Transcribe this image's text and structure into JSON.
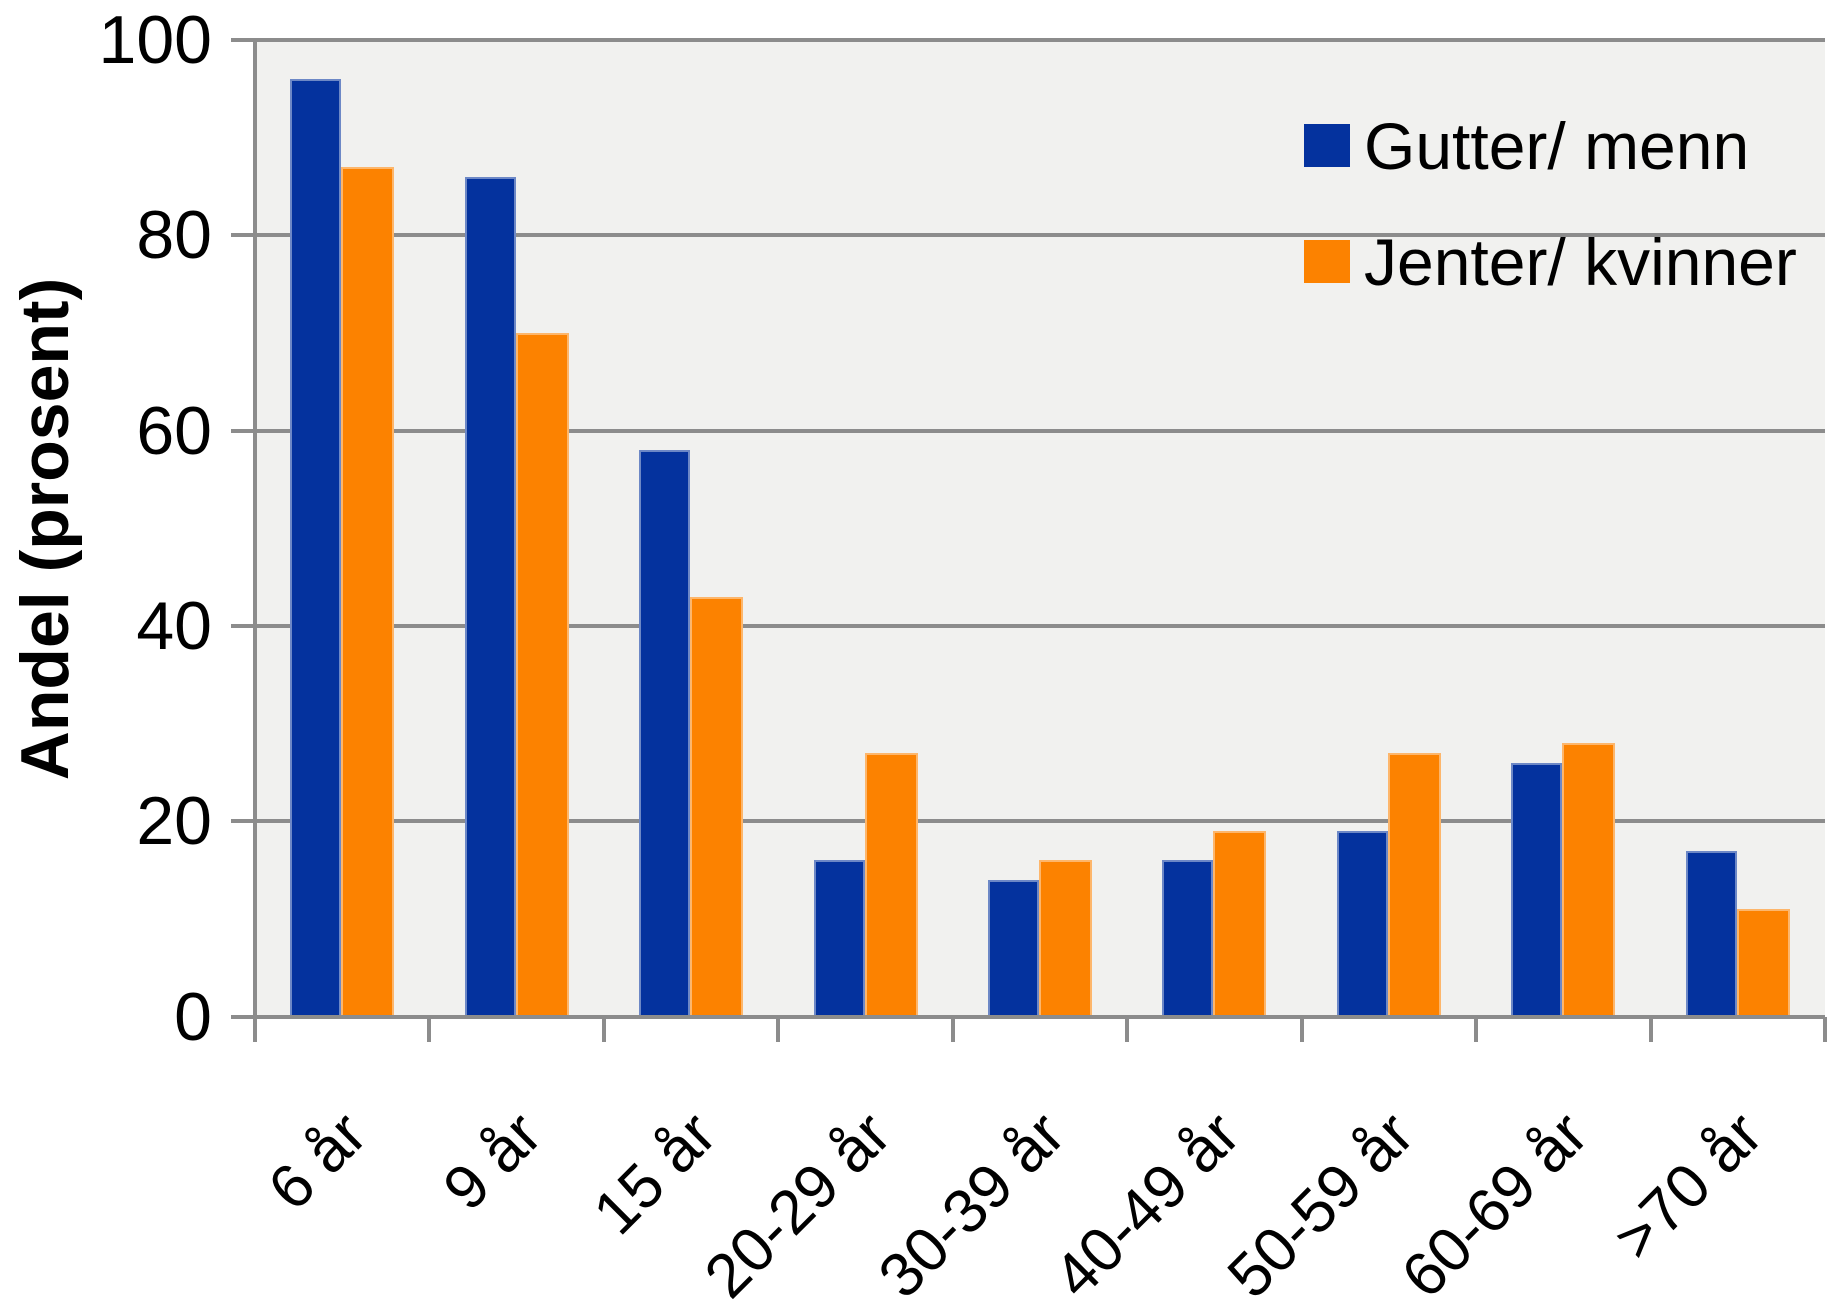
{
  "chart_data": {
    "type": "bar",
    "title": "",
    "ylabel": "Andel (prosent)",
    "xlabel": "",
    "categories": [
      "6 år",
      "9 år",
      "15 år",
      "20-29 år",
      "30-39 år",
      "40-49 år",
      "50-59 år",
      "60-69 år",
      ">70 år"
    ],
    "series": [
      {
        "name": "Gutter/ menn",
        "color": "#04329e",
        "values": [
          96,
          86,
          58,
          16,
          14,
          16,
          19,
          26,
          17
        ]
      },
      {
        "name": "Jenter/ kvinner",
        "color": "#fc8200",
        "values": [
          87,
          70,
          43,
          27,
          16,
          19,
          27,
          28,
          11
        ]
      }
    ],
    "y_ticks": [
      0,
      20,
      40,
      60,
      80,
      100
    ],
    "ylim": [
      0,
      100
    ],
    "grid": true,
    "legend_position": "upper-right",
    "colors": {
      "plot_background": "#f1f1ef",
      "grid": "#8c8c8c",
      "text": "#000000"
    }
  }
}
